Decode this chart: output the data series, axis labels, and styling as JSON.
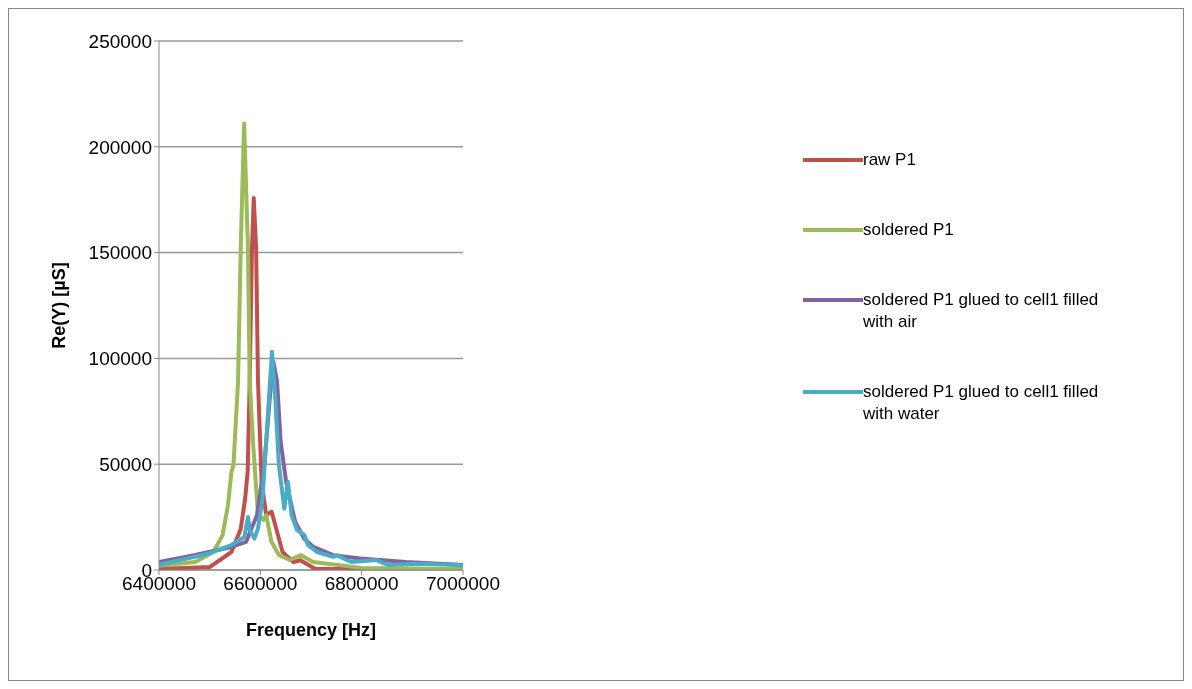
{
  "chart_data": {
    "type": "line",
    "xlabel": "Frequency [Hz]",
    "ylabel": "Re(Y) [µS]",
    "xlim": [
      6400000,
      7000000
    ],
    "xticks": [
      6400000,
      6600000,
      6800000,
      7000000
    ],
    "ylim": [
      0,
      250000
    ],
    "yticks": [
      0,
      50000,
      100000,
      150000,
      200000,
      250000
    ],
    "grid": "y",
    "legend": "right",
    "marker": "none",
    "line_style": "solid",
    "series": [
      {
        "name": "raw P1",
        "color": "#c0504d",
        "x": [
          6400000,
          6500000,
          6543000,
          6561300,
          6570000,
          6575000,
          6579000,
          6583500,
          6587000,
          6591700,
          6595400,
          6602500,
          6611500,
          6622300,
          6629400,
          6643800,
          6665300,
          6679000,
          6707500,
          6800000,
          7000000
        ],
        "values": [
          500,
          1400,
          8500,
          19400,
          33600,
          46400,
          89000,
          152000,
          175800,
          152000,
          89000,
          41700,
          26000,
          27500,
          21300,
          8500,
          3800,
          4600,
          600,
          500,
          500
        ]
      },
      {
        "name": "soldered P1",
        "color": "#9bbb59",
        "x": [
          6400000,
          6471700,
          6507500,
          6525500,
          6536200,
          6543000,
          6547000,
          6556000,
          6561300,
          6568000,
          6575600,
          6579000,
          6586400,
          6595400,
          6606000,
          6611500,
          6622000,
          6636600,
          6658000,
          6679600,
          6704000,
          6800000,
          7000000
        ],
        "values": [
          2000,
          3800,
          8500,
          16500,
          30800,
          46400,
          49600,
          89000,
          152000,
          211000,
          152000,
          89000,
          57400,
          26000,
          23700,
          26000,
          13300,
          7100,
          4700,
          7100,
          3800,
          1000,
          500
        ]
      },
      {
        "name": "soldered P1 glued to cell1 filled with air",
        "color": "#8064a2",
        "x": [
          6400000,
          6471700,
          6543000,
          6572000,
          6593500,
          6607900,
          6618600,
          6625800,
          6633000,
          6640100,
          6650900,
          6668800,
          6686800,
          6704600,
          6743800,
          6797500,
          6887000,
          7000000
        ],
        "values": [
          3800,
          7100,
          10900,
          13300,
          26000,
          49700,
          81100,
          98500,
          89000,
          60600,
          41700,
          22700,
          14800,
          10900,
          7000,
          5400,
          3800,
          2400
        ]
      },
      {
        "name": "soldered P1 glued to cell1 filled with water",
        "color": "#4bacc6",
        "x": [
          6400000,
          6496800,
          6543000,
          6568500,
          6575600,
          6579200,
          6588200,
          6595400,
          6604300,
          6615000,
          6623000,
          6629400,
          6636600,
          6647300,
          6654500,
          6661600,
          6672400,
          6686800,
          6693900,
          6711800,
          6743800,
          6750000,
          6779600,
          6829800,
          6851300,
          6908600,
          6987100,
          7000000
        ],
        "values": [
          2400,
          7700,
          11800,
          15600,
          25100,
          18900,
          14800,
          19600,
          33800,
          73400,
          103200,
          81100,
          49700,
          29000,
          41700,
          26000,
          18900,
          16600,
          11800,
          8500,
          6200,
          7000,
          3800,
          4700,
          2400,
          3000,
          2500,
          2000
        ]
      }
    ]
  }
}
